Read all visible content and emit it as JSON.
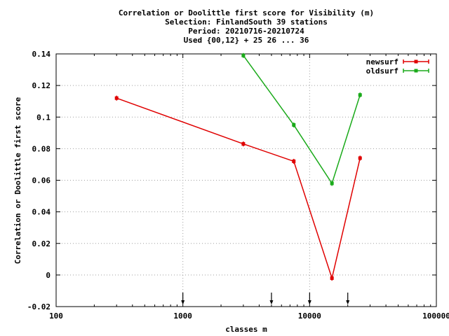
{
  "chart_data": {
    "type": "line",
    "title_lines": [
      "Correlation or Doolittle first score  for Visibility (m)",
      "Selection: FinlandSouth     39 stations",
      "Period: 20210716-20210724",
      "Used {00,12} + 25 26 ... 36"
    ],
    "xlabel": "classes m",
    "ylabel": "Correlation or Doolittle first score",
    "x_scale": "log",
    "xlim": [
      100,
      100000
    ],
    "ylim": [
      -0.02,
      0.14
    ],
    "x_ticks": [
      100,
      1000,
      10000,
      100000
    ],
    "x_tick_labels": [
      "100",
      "1000",
      "10000",
      "100000"
    ],
    "y_ticks": [
      -0.02,
      0,
      0.02,
      0.04,
      0.06,
      0.08,
      0.1,
      0.12,
      0.14
    ],
    "y_tick_labels": [
      "-0.02",
      "0",
      "0.02",
      "0.04",
      "0.06",
      "0.08",
      "0.1",
      "0.12",
      "0.14"
    ],
    "grid": true,
    "legend_position": "top-right",
    "class_markers_x": [
      1000,
      5000,
      10000,
      20000
    ],
    "series": [
      {
        "name": "newsurf",
        "color": "#e00000",
        "x": [
          300,
          3000,
          7500,
          15000,
          25000
        ],
        "y": [
          0.112,
          0.083,
          0.072,
          -0.002,
          0.074
        ]
      },
      {
        "name": "oldsurf",
        "color": "#1aaa1a",
        "x": [
          3000,
          7500,
          15000,
          25000
        ],
        "y": [
          0.139,
          0.095,
          0.058,
          0.114
        ]
      }
    ]
  }
}
